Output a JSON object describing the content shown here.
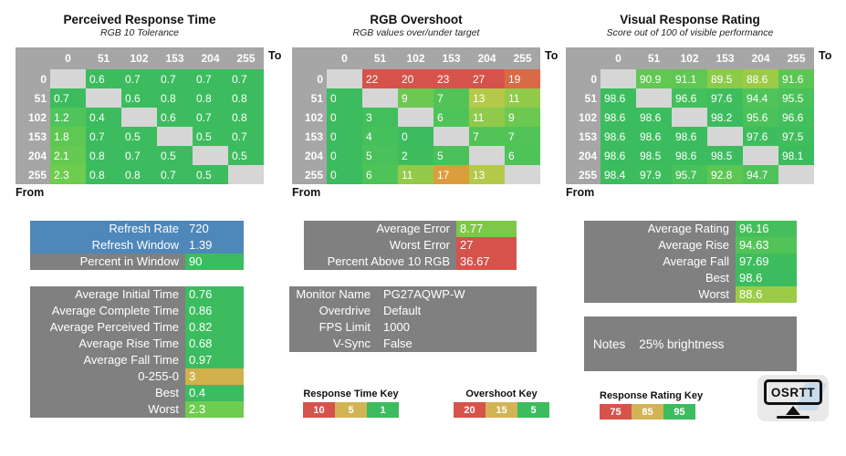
{
  "colors": {
    "header_gray": "#A6A6A6",
    "diagonal_gray": "#D6D6D6",
    "label_gray": "#808080",
    "info_blue": "#4E87BA",
    "good_green": "#3CBC5E",
    "warn_gold": "#D2B456",
    "bad_red": "#D6534C"
  },
  "chart_data": [
    {
      "type": "heatmap",
      "title": "Perceived Response Time",
      "subtitle": "RGB 10 Tolerance",
      "x_axis_label": "To",
      "y_axis_label": "From",
      "x": [
        0,
        51,
        102,
        153,
        204,
        255
      ],
      "y": [
        0,
        51,
        102,
        153,
        204,
        255
      ],
      "values": [
        [
          null,
          0.6,
          0.7,
          0.7,
          0.7,
          0.7
        ],
        [
          0.7,
          null,
          0.6,
          0.8,
          0.8,
          0.8
        ],
        [
          1.2,
          0.4,
          null,
          0.6,
          0.7,
          0.8
        ],
        [
          1.8,
          0.7,
          0.5,
          null,
          0.5,
          0.7
        ],
        [
          2.1,
          0.8,
          0.7,
          0.5,
          null,
          0.5
        ],
        [
          2.3,
          0.8,
          0.8,
          0.7,
          0.5,
          null
        ]
      ],
      "cell_colors": [
        [
          null,
          "#3CBC5E",
          "#3CBC5E",
          "#3CBC5E",
          "#3CBC5E",
          "#3CBC5E"
        ],
        [
          "#3CBC5E",
          null,
          "#3CBC5E",
          "#3CBC5E",
          "#3CBC5E",
          "#3CBC5E"
        ],
        [
          "#4FC45A",
          "#3CBC5E",
          null,
          "#3CBC5E",
          "#3CBC5E",
          "#3CBC5E"
        ],
        [
          "#5FC854",
          "#3CBC5E",
          "#3CBC5E",
          null,
          "#3CBC5E",
          "#3CBC5E"
        ],
        [
          "#66CA52",
          "#3CBC5E",
          "#3CBC5E",
          "#3CBC5E",
          null,
          "#3CBC5E"
        ],
        [
          "#6ECC4F",
          "#3CBC5E",
          "#3CBC5E",
          "#3CBC5E",
          "#3CBC5E",
          null
        ]
      ],
      "legend": "Response Time Key: 10 red / 5 gold / 1 green"
    },
    {
      "type": "heatmap",
      "title": "RGB Overshoot",
      "subtitle": "RGB values over/under target",
      "x_axis_label": "To",
      "y_axis_label": "From",
      "x": [
        0,
        51,
        102,
        153,
        204,
        255
      ],
      "y": [
        0,
        51,
        102,
        153,
        204,
        255
      ],
      "values": [
        [
          null,
          22,
          20,
          23,
          27,
          19
        ],
        [
          0,
          null,
          9,
          7,
          13,
          11
        ],
        [
          0,
          3,
          null,
          6,
          11,
          9
        ],
        [
          0,
          4,
          0,
          null,
          7,
          7
        ],
        [
          0,
          5,
          2,
          5,
          null,
          6
        ],
        [
          0,
          6,
          11,
          17,
          13,
          null
        ]
      ],
      "cell_colors": [
        [
          null,
          "#D6534C",
          "#D6534C",
          "#D6534C",
          "#D6534C",
          "#DA6A46"
        ],
        [
          "#3CBC5E",
          null,
          "#6CC851",
          "#52C457",
          "#B4C94A",
          "#92CA4A"
        ],
        [
          "#3CBC5E",
          "#42BE5C",
          null,
          "#4EC358",
          "#8FCA4B",
          "#6CC851"
        ],
        [
          "#3CBC5E",
          "#46C05B",
          "#3CBC5E",
          null,
          "#52C457",
          "#52C457"
        ],
        [
          "#3CBC5E",
          "#4AC15A",
          "#3FBD5D",
          "#4AC15A",
          null,
          "#4EC358"
        ],
        [
          "#3CBC5E",
          "#4EC358",
          "#92CA4A",
          "#DC9E3D",
          "#B4C94A",
          null
        ]
      ],
      "legend": "Overshoot Key: 20 red / 15 gold / 5 green"
    },
    {
      "type": "heatmap",
      "title": "Visual Response Rating",
      "subtitle": "Score out of 100 of visible performance",
      "x_axis_label": "To",
      "y_axis_label": "From",
      "x": [
        0,
        51,
        102,
        153,
        204,
        255
      ],
      "y": [
        0,
        51,
        102,
        153,
        204,
        255
      ],
      "values": [
        [
          null,
          90.9,
          91.1,
          89.5,
          88.6,
          91.6
        ],
        [
          98.6,
          null,
          96.6,
          97.6,
          94.4,
          95.5
        ],
        [
          98.6,
          98.6,
          null,
          98.2,
          95.6,
          96.6
        ],
        [
          98.6,
          98.6,
          98.6,
          null,
          97.6,
          97.5
        ],
        [
          98.6,
          98.5,
          98.6,
          98.5,
          null,
          98.1
        ],
        [
          98.4,
          97.9,
          95.7,
          92.8,
          94.7,
          null
        ]
      ],
      "cell_colors": [
        [
          null,
          "#62C753",
          "#60C754",
          "#8CCA4A",
          "#9CCB47",
          "#5CC655"
        ],
        [
          "#3BBC5E",
          null,
          "#43BF5B",
          "#3EBD5D",
          "#50C458",
          "#4AC259"
        ],
        [
          "#3BBC5E",
          "#3BBC5E",
          null,
          "#3CBC5E",
          "#4AC259",
          "#43BF5B"
        ],
        [
          "#3BBC5E",
          "#3BBC5E",
          "#3BBC5E",
          null,
          "#3EBD5D",
          "#3FBE5C"
        ],
        [
          "#3BBC5E",
          "#3CBC5E",
          "#3BBC5E",
          "#3CBC5E",
          null,
          "#3CBC5E"
        ],
        [
          "#3CBC5E",
          "#3EBD5D",
          "#48C15A",
          "#5CC655",
          "#4FC359",
          null
        ]
      ],
      "legend": "Response Rating Key: 75 red / 85 gold / 95 green"
    }
  ],
  "panels": {
    "refresh": {
      "rows": [
        {
          "label": "Refresh Rate",
          "value": "720",
          "label_bg": "#4E87BA",
          "value_bg": "#4E87BA"
        },
        {
          "label": "Refresh Window",
          "value": "1.39",
          "label_bg": "#4E87BA",
          "value_bg": "#4E87BA"
        },
        {
          "label": "Percent in Window",
          "value": "90",
          "label_bg": "#808080",
          "value_bg": "#3CBC5E"
        }
      ]
    },
    "times": {
      "rows": [
        {
          "label": "Average Initial Time",
          "value": "0.76",
          "value_bg": "#3CBC5E"
        },
        {
          "label": "Average Complete Time",
          "value": "0.86",
          "value_bg": "#3CBC5E"
        },
        {
          "label": "Average Perceived Time",
          "value": "0.82",
          "value_bg": "#3CBC5E"
        },
        {
          "label": "Average Rise Time",
          "value": "0.68",
          "value_bg": "#3CBC5E"
        },
        {
          "label": "Average Fall Time",
          "value": "0.97",
          "value_bg": "#3CBC5E"
        },
        {
          "label": "0-255-0",
          "value": "3",
          "value_bg": "#D0B14B"
        },
        {
          "label": "Best",
          "value": "0.4",
          "value_bg": "#3CBC5E"
        },
        {
          "label": "Worst",
          "value": "2.3",
          "value_bg": "#6ECC4F"
        }
      ]
    },
    "error": {
      "rows": [
        {
          "label": "Average Error",
          "value": "8.77",
          "value_bg": "#7DC848"
        },
        {
          "label": "Worst Error",
          "value": "27",
          "value_bg": "#D6534C"
        },
        {
          "label": "Percent Above 10 RGB",
          "value": "36.67",
          "value_bg": "#D6534C"
        }
      ]
    },
    "monitor": {
      "rows": [
        {
          "label": "Monitor Name",
          "value": "PG27AQWP-W"
        },
        {
          "label": "Overdrive",
          "value": "Default"
        },
        {
          "label": "FPS Limit",
          "value": "1000"
        },
        {
          "label": "V-Sync",
          "value": "False"
        }
      ]
    },
    "rating": {
      "rows": [
        {
          "label": "Average Rating",
          "value": "96.16",
          "value_bg": "#44BF5B"
        },
        {
          "label": "Average Rise",
          "value": "94.63",
          "value_bg": "#52C457"
        },
        {
          "label": "Average Fall",
          "value": "97.69",
          "value_bg": "#3EBD5D"
        },
        {
          "label": "Best",
          "value": "98.6",
          "value_bg": "#3CBC5E"
        },
        {
          "label": "Worst",
          "value": "88.6",
          "value_bg": "#9CCB47"
        }
      ]
    },
    "notes": {
      "label": "Notes",
      "value": "25% brightness"
    }
  },
  "keys": [
    {
      "title": "Response Time Key",
      "segments": [
        {
          "v": "10",
          "c": "#D6534C"
        },
        {
          "v": "5",
          "c": "#D2B456"
        },
        {
          "v": "1",
          "c": "#3CBC5E"
        }
      ]
    },
    {
      "title": "Overshoot Key",
      "segments": [
        {
          "v": "20",
          "c": "#D6534C"
        },
        {
          "v": "15",
          "c": "#D2B456"
        },
        {
          "v": "5",
          "c": "#3CBC5E"
        }
      ]
    },
    {
      "title": "Response Rating Key",
      "segments": [
        {
          "v": "75",
          "c": "#D6534C"
        },
        {
          "v": "85",
          "c": "#D2B456"
        },
        {
          "v": "95",
          "c": "#3CBC5E"
        }
      ]
    }
  ],
  "logo": {
    "text": "OSRTT"
  }
}
